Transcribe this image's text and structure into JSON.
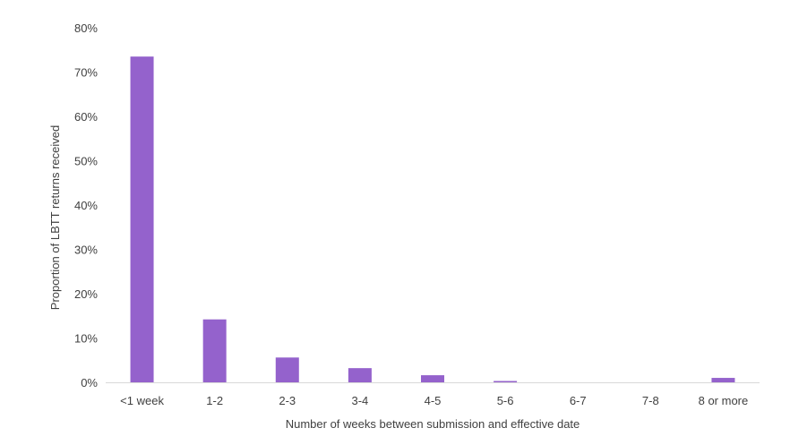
{
  "chart_data": {
    "type": "bar",
    "title": "",
    "xlabel": "Number of weeks between submission and effective date",
    "ylabel": "Proportion of LBTT returns received",
    "categories": [
      "<1 week",
      "1-2",
      "2-3",
      "3-4",
      "4-5",
      "5-6",
      "6-7",
      "7-8",
      "8 or more"
    ],
    "values": [
      73.5,
      14.2,
      5.6,
      3.2,
      1.6,
      0.3,
      0.0,
      0.0,
      1.0
    ],
    "unit": "%",
    "ylim": [
      0,
      80
    ],
    "yticks": [
      0,
      10,
      20,
      30,
      40,
      50,
      60,
      70,
      80
    ],
    "ytick_labels": [
      "0%",
      "10%",
      "20%",
      "30%",
      "40%",
      "50%",
      "60%",
      "70%",
      "80%"
    ],
    "grid": false,
    "legend": "none",
    "bar_color": "#9462CC",
    "axis_color": "#D9D9D9"
  }
}
